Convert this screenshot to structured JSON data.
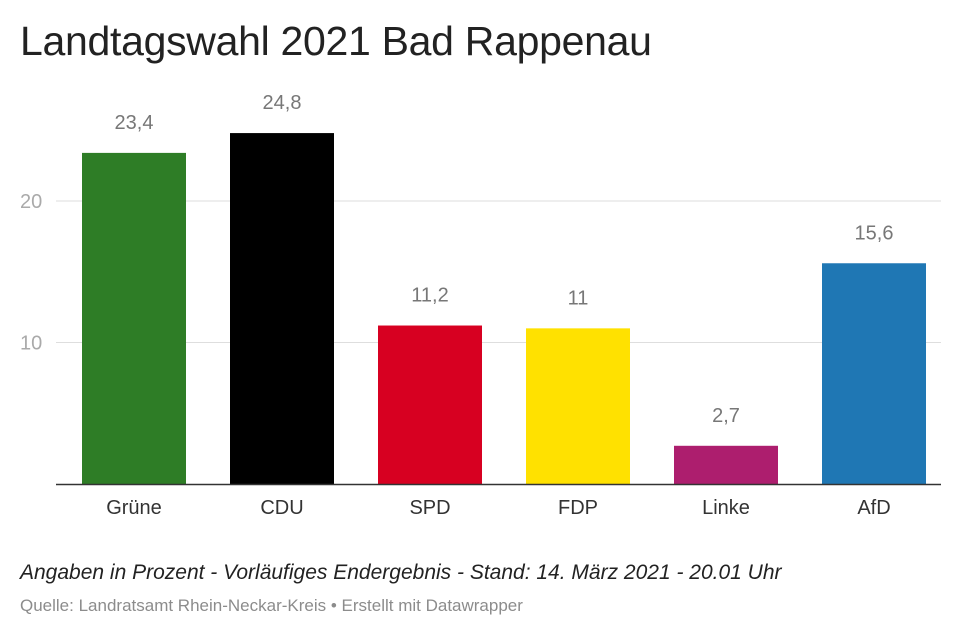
{
  "chart_data": {
    "type": "bar",
    "title": "Landtagswahl 2021 Bad Rappenau",
    "categories": [
      "Grüne",
      "CDU",
      "SPD",
      "FDP",
      "Linke",
      "AfD"
    ],
    "values": [
      23.4,
      24.8,
      11.2,
      11,
      2.7,
      15.6
    ],
    "value_labels": [
      "23,4",
      "24,8",
      "11,2",
      "11",
      "2,7",
      "15,6"
    ],
    "colors": [
      "#2e7d26",
      "#000000",
      "#d70021",
      "#ffe100",
      "#ad1e6e",
      "#1f77b4"
    ],
    "yticks": [
      10,
      20
    ],
    "ylim": [
      0,
      26
    ],
    "grid": true,
    "xlabel": "",
    "ylabel": ""
  },
  "note": "Angaben in Prozent - Vorläufiges Endergebnis - Stand: 14. März 2021 - 20.01 Uhr",
  "source": "Quelle: Landratsamt Rhein-Neckar-Kreis • Erstellt mit Datawrapper"
}
